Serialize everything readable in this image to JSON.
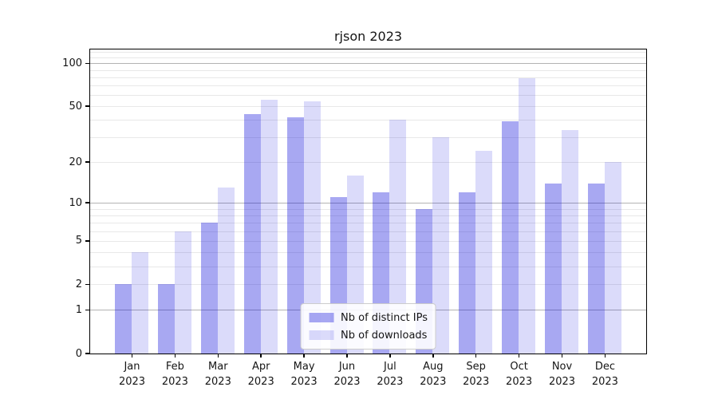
{
  "title": "rjson 2023",
  "chart_data": {
    "type": "bar",
    "title": "rjson 2023",
    "categories": [
      "Jan 2023",
      "Feb 2023",
      "Mar 2023",
      "Apr 2023",
      "May 2023",
      "Jun 2023",
      "Jul 2023",
      "Aug 2023",
      "Sep 2023",
      "Oct 2023",
      "Nov 2023",
      "Dec 2023"
    ],
    "series": [
      {
        "name": "Nb of distinct IPs",
        "color": "rgba(0,0,218,0.34)",
        "values": [
          2,
          2,
          7,
          44,
          42,
          11,
          12,
          9,
          12,
          39,
          14,
          14
        ]
      },
      {
        "name": "Nb of downloads",
        "color": "rgba(0,0,218,0.14)",
        "values": [
          4,
          6,
          13,
          56,
          54,
          16,
          40,
          30,
          24,
          79,
          34,
          20
        ]
      }
    ],
    "xlabel": "",
    "ylabel": "",
    "yscale": "log1p",
    "ylim": [
      0,
      125
    ],
    "y_tick_values": [
      0,
      1,
      2,
      5,
      10,
      20,
      50,
      100
    ],
    "y_major_gridlines": [
      1,
      10,
      100
    ],
    "y_minor_gridlines": [
      2,
      3,
      4,
      5,
      6,
      7,
      8,
      9,
      20,
      30,
      40,
      50,
      60,
      70,
      80,
      90,
      110,
      120
    ],
    "grid": true,
    "legend_position": "lower center"
  },
  "legend": {
    "items": [
      "Nb of distinct IPs",
      "Nb of downloads"
    ]
  },
  "styles": {
    "bar_color_ips": "rgba(0,0,218,0.34)",
    "bar_color_downloads": "rgba(0,0,218,0.14)",
    "grid_major_color": "#b3b3b3",
    "grid_minor_color": "#e8e8e8",
    "spine_color": "#000000",
    "text_color": "#151515"
  }
}
